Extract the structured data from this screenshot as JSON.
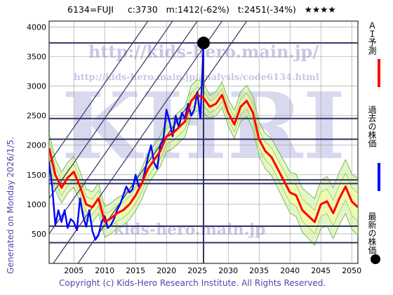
{
  "header": {
    "title": "6134=FUJI     c:3730   m:1412(-62%)   t:2451(-34%)   ★★★★"
  },
  "side_note": "Generated on Monday 2026/1/5.",
  "footer": "Copyright (c) Kids-Hero Research Institute. All Rights Reserved.",
  "watermarks": {
    "big": "KHRI",
    "url_top": "http://kids-hero.main.jp/",
    "url_mid": "http://kids-hero.main.jp/analysis/code6134.html",
    "url_bottom": "kids-hero.main.jp"
  },
  "legend": [
    {
      "label": "ＡＩ予測",
      "color": "#ff0000"
    },
    {
      "label": "過去の株価",
      "color": "#0000ff"
    },
    {
      "label": "最新の株価",
      "color": "#000000"
    }
  ],
  "chart_data": {
    "type": "line",
    "xlim": [
      2001,
      2051
    ],
    "ylim": [
      0,
      4100
    ],
    "xticks": [
      2005,
      2010,
      2015,
      2020,
      2025,
      2030,
      2035,
      2040,
      2045,
      2050
    ],
    "yticks": [
      500,
      1000,
      1500,
      2000,
      2500,
      3000,
      3500,
      4000
    ],
    "grid": true,
    "h_levels": [
      3730,
      2451,
      2100,
      1412,
      1350,
      630,
      350
    ],
    "current_x": 2026,
    "latest_point": {
      "x": 2026.0,
      "y": 3730
    },
    "series": [
      {
        "name": "過去の株価",
        "color": "#0000ff",
        "x": [
          2001.0,
          2001.5,
          2002.0,
          2002.5,
          2003.0,
          2003.5,
          2004.0,
          2004.5,
          2005.0,
          2005.5,
          2006.0,
          2006.5,
          2007.0,
          2007.5,
          2008.0,
          2008.5,
          2009.0,
          2009.5,
          2010.0,
          2010.5,
          2011.0,
          2011.5,
          2012.0,
          2012.5,
          2013.0,
          2013.5,
          2014.0,
          2014.5,
          2015.0,
          2015.5,
          2016.0,
          2016.5,
          2017.0,
          2017.5,
          2018.0,
          2018.5,
          2019.0,
          2019.5,
          2020.0,
          2020.5,
          2021.0,
          2021.5,
          2022.0,
          2022.5,
          2023.0,
          2023.5,
          2024.0,
          2024.5,
          2025.0,
          2025.5,
          2026.0
        ],
        "y": [
          1700,
          1300,
          650,
          900,
          700,
          900,
          600,
          750,
          700,
          560,
          1100,
          800,
          620,
          900,
          550,
          400,
          480,
          700,
          800,
          600,
          650,
          750,
          900,
          1000,
          1150,
          1300,
          1200,
          1250,
          1500,
          1300,
          1350,
          1550,
          1800,
          2000,
          1700,
          1600,
          2000,
          2100,
          2600,
          2400,
          2150,
          2500,
          2300,
          2550,
          2450,
          2700,
          2500,
          2600,
          2900,
          2450,
          3730
        ]
      },
      {
        "name": "ＡＩ予測",
        "color": "#ff0000",
        "x": [
          2001.0,
          2002.0,
          2003.0,
          2004.0,
          2005.0,
          2006.0,
          2007.0,
          2008.0,
          2009.0,
          2010.0,
          2011.0,
          2012.0,
          2013.0,
          2014.0,
          2015.0,
          2016.0,
          2017.0,
          2018.0,
          2019.0,
          2020.0,
          2021.0,
          2022.0,
          2023.0,
          2024.0,
          2025.0,
          2026.0,
          2027.0,
          2028.0,
          2029.0,
          2030.0,
          2031.0,
          2032.0,
          2033.0,
          2034.0,
          2035.0,
          2036.0,
          2037.0,
          2038.0,
          2039.0,
          2040.0,
          2041.0,
          2042.0,
          2043.0,
          2044.0,
          2045.0,
          2046.0,
          2047.0,
          2048.0,
          2049.0,
          2050.0,
          2051.0
        ],
        "y": [
          1950,
          1500,
          1280,
          1450,
          1550,
          1300,
          1000,
          950,
          1100,
          700,
          760,
          850,
          900,
          1000,
          1150,
          1350,
          1600,
          1750,
          1900,
          2150,
          2200,
          2300,
          2400,
          2750,
          2850,
          2800,
          2650,
          2700,
          2850,
          2550,
          2350,
          2650,
          2750,
          2550,
          2100,
          1900,
          1800,
          1600,
          1400,
          1200,
          1150,
          900,
          800,
          700,
          1000,
          1050,
          850,
          1100,
          1300,
          1050,
          950
        ]
      }
    ]
  }
}
